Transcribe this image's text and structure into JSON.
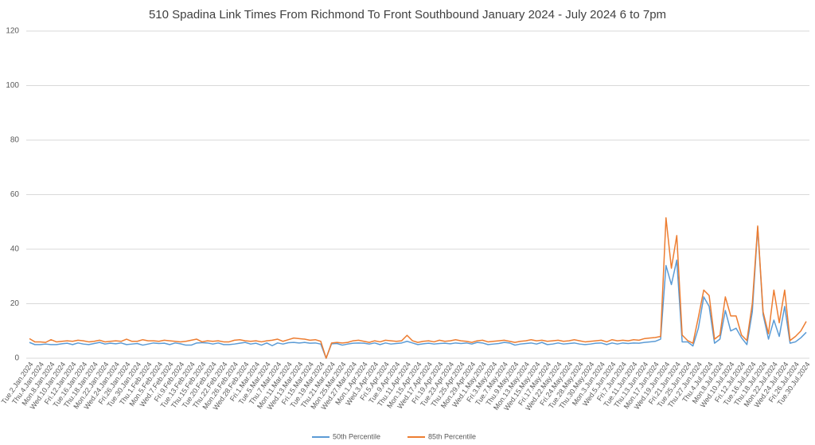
{
  "chart_data": {
    "type": "line",
    "title": "510 Spadina Link Times From Richmond To Front Southbound January 2024 - July 2024 6 to 7pm",
    "categories": [
      "Tue.2.Jan.2024",
      null,
      "Thu.4.Jan.2024",
      null,
      "Mon.8.Jan.2024",
      null,
      "Wed.10.Jan.2024",
      null,
      "Fri.12.Jan.2024",
      null,
      "Tue.16.Jan.2024",
      null,
      "Thu.18.Jan.2024",
      null,
      "Mon.22.Jan.2024",
      null,
      "Wed.24.Jan.2024",
      null,
      "Fri.26.Jan.2024",
      null,
      "Tue.30.Jan.2024",
      null,
      "Thu.1.Feb.2024",
      null,
      "Mon.5.Feb.2024",
      null,
      "Wed.7.Feb.2024",
      null,
      "Fri.9.Feb.2024",
      null,
      "Tue.13.Feb.2024",
      null,
      "Thu.15.Feb.2024",
      null,
      "Tue.20.Feb.2024",
      null,
      "Thu.22.Feb.2024",
      null,
      "Mon.26.Feb.2024",
      null,
      "Wed.28.Feb.2024",
      null,
      "Fri.1.Mar.2024",
      null,
      "Tue.5.Mar.2024",
      null,
      "Thu.7.Mar.2024",
      null,
      "Mon.11.Mar.2024",
      null,
      "Wed.13.Mar.2024",
      null,
      "Fri.15.Mar.2024",
      null,
      "Tue.19.Mar.2024",
      null,
      "Thu.21.Mar.2024",
      null,
      "Mon.25.Mar.2024",
      null,
      "Wed.27.Mar.2024",
      null,
      "Mon.1.Apr.2024",
      null,
      "Wed.3.Apr.2024",
      null,
      "Fri.5.Apr.2024",
      null,
      "Tue.9.Apr.2024",
      null,
      "Thu.11.Apr.2024",
      null,
      "Mon.15.Apr.2024",
      null,
      "Wed.17.Apr.2024",
      null,
      "Fri.19.Apr.2024",
      null,
      "Tue.23.Apr.2024",
      null,
      "Thu.25.Apr.2024",
      null,
      "Mon.29.Apr.2024",
      null,
      "Wed.1.May.2024",
      null,
      "Fri.3.May.2024",
      null,
      "Tue.7.May.2024",
      null,
      "Thu.9.May.2024",
      null,
      "Mon.13.May.2024",
      null,
      "Wed.15.May.2024",
      null,
      "Fri.17.May.2024",
      null,
      "Wed.22.May.2024",
      null,
      "Fri.24.May.2024",
      null,
      "Tue.28.May.2024",
      null,
      "Thu.30.May.2024",
      null,
      "Mon.3.Jun.2024",
      null,
      "Wed.5.Jun.2024",
      null,
      "Fri.7.Jun.2024",
      null,
      "Tue.11.Jun.2024",
      null,
      "Thu.13.Jun.2024",
      null,
      "Mon.17.Jun.2024",
      null,
      "Wed.19.Jun.2024",
      null,
      "Fri.21.Jun.2024",
      null,
      "Tue.25.Jun.2024",
      null,
      "Thu.27.Jun.2024",
      null,
      "Thu.4.Jul.2024",
      null,
      "Mon.8.Jul.2024",
      null,
      "Wed.10.Jul.2024",
      null,
      "Fri.12.Jul.2024",
      null,
      "Tue.16.Jul.2024",
      null,
      "Thu.18.Jul.2024",
      null,
      "Mon.22.Jul.2024",
      null,
      "Wed.24.Jul.2024",
      null,
      "Fri.26.Jul.2024",
      null,
      "Tue.30.Jul.2024"
    ],
    "series": [
      {
        "name": "50th Percentile",
        "color": "#5b9bd5",
        "values": [
          5.8,
          5,
          5,
          5.2,
          5,
          5,
          5.3,
          5.5,
          5,
          5.6,
          5.2,
          5,
          5.4,
          5.8,
          5.2,
          5.5,
          5.3,
          5.6,
          5,
          5.2,
          5.4,
          4.8,
          5.2,
          5.6,
          5.4,
          5.5,
          5,
          5.6,
          5.3,
          4.8,
          4.8,
          5.6,
          5.7,
          5.6,
          5.2,
          5.6,
          5,
          5,
          5.2,
          5.5,
          5.8,
          5.2,
          5.5,
          4.8,
          5.6,
          4.6,
          5.6,
          5.2,
          5.7,
          5.8,
          5.6,
          5.8,
          5.5,
          5.6,
          5.2,
          0,
          5.3,
          5.4,
          4.8,
          5.2,
          5.5,
          5.6,
          5.5,
          5.2,
          5.6,
          5,
          5.6,
          5.2,
          5.4,
          5.6,
          6.2,
          5.6,
          5,
          5.3,
          5.5,
          5.2,
          5.4,
          5.5,
          5.3,
          5.6,
          5.4,
          5.6,
          5.2,
          5.8,
          5.6,
          5,
          5.2,
          5.4,
          5.8,
          5.6,
          4.8,
          5.2,
          5.4,
          5.6,
          5.2,
          5.8,
          5,
          5.2,
          5.6,
          5.2,
          5.4,
          5.6,
          5.2,
          5,
          5.2,
          5.5,
          5.6,
          5,
          5.6,
          5.2,
          5.6,
          5.4,
          5.6,
          5.5,
          5.8,
          6,
          6.2,
          7,
          34,
          27,
          36,
          6,
          6,
          4.5,
          11,
          22.5,
          19,
          5.5,
          7,
          17.5,
          10,
          11,
          7.5,
          5,
          17,
          48,
          16,
          7,
          14,
          8,
          19,
          5.5,
          6,
          7.5,
          9.5
        ]
      },
      {
        "name": "85th Percentile",
        "color": "#ed7d31",
        "values": [
          7.2,
          6,
          6,
          5.8,
          6.8,
          6,
          6.2,
          6.4,
          6.2,
          6.6,
          6.4,
          6,
          6.2,
          6.6,
          6,
          6.2,
          6.4,
          6.2,
          7,
          6.2,
          6.2,
          6.8,
          6.4,
          6.4,
          6.2,
          6.6,
          6.4,
          6.2,
          6,
          6.2,
          6.6,
          7,
          6,
          6.4,
          6.2,
          6.4,
          6,
          6,
          6.6,
          6.8,
          6.4,
          6.2,
          6.4,
          6,
          6.4,
          6.6,
          7,
          6.2,
          6.8,
          7.4,
          7.2,
          7,
          6.6,
          6.8,
          6.2,
          0,
          5.6,
          5.8,
          5.6,
          5.8,
          6.4,
          6.6,
          6.2,
          5.8,
          6.4,
          6,
          6.6,
          6.4,
          6.2,
          6.4,
          8.4,
          6.4,
          5.8,
          6.2,
          6.4,
          6,
          6.6,
          6.2,
          6.4,
          6.8,
          6.4,
          6.2,
          5.8,
          6.4,
          6.6,
          6,
          6.2,
          6.4,
          6.6,
          6.2,
          5.8,
          6.2,
          6.4,
          6.8,
          6.4,
          6.6,
          6.2,
          6.4,
          6.6,
          6.2,
          6.4,
          6.8,
          6.4,
          6,
          6.2,
          6.4,
          6.6,
          6,
          6.8,
          6.4,
          6.6,
          6.4,
          6.8,
          6.6,
          7.2,
          7.4,
          7.6,
          8,
          51.5,
          33,
          45,
          8.5,
          6.5,
          5.5,
          15,
          25,
          23,
          7,
          8.5,
          22.5,
          15.5,
          15.5,
          8.5,
          6.5,
          20,
          48.5,
          17,
          9,
          25,
          13,
          25,
          6.5,
          8,
          10,
          13.5
        ]
      }
    ],
    "ylim": [
      0,
      120
    ],
    "yticks": [
      0,
      20,
      40,
      60,
      80,
      100,
      120
    ],
    "grid": true,
    "legend": "bottom"
  }
}
